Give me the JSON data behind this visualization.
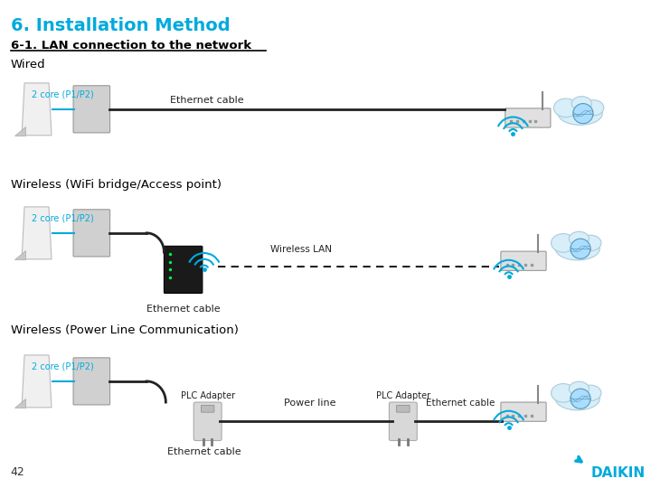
{
  "bg_color": "#ffffff",
  "title": "6. Installation Method",
  "title_color": "#00aadd",
  "subtitle": "6-1. LAN connection to the network",
  "subtitle_color": "#000000",
  "section1": "Wired",
  "section2": "Wireless (WiFi bridge/Access point)",
  "section3": "Wireless (Power Line Communication)",
  "label_2core": "2 core (P1/P2)",
  "label_2core_color": "#00aadd",
  "label_ethernet1": "Ethernet cable",
  "label_ethernet2": "Ethernet cable",
  "label_ethernet3": "Ethernet cable",
  "label_ethernet4": "Ethernet cable",
  "label_wireless_lan": "Wireless LAN",
  "label_plc1": "PLC Adapter",
  "label_plc2": "PLC Adapter",
  "label_powerline": "Power line",
  "page_num": "42",
  "daikin_color": "#00aadd",
  "cloud_color": "#d8eef8",
  "cloud_edge": "#aaccdd"
}
